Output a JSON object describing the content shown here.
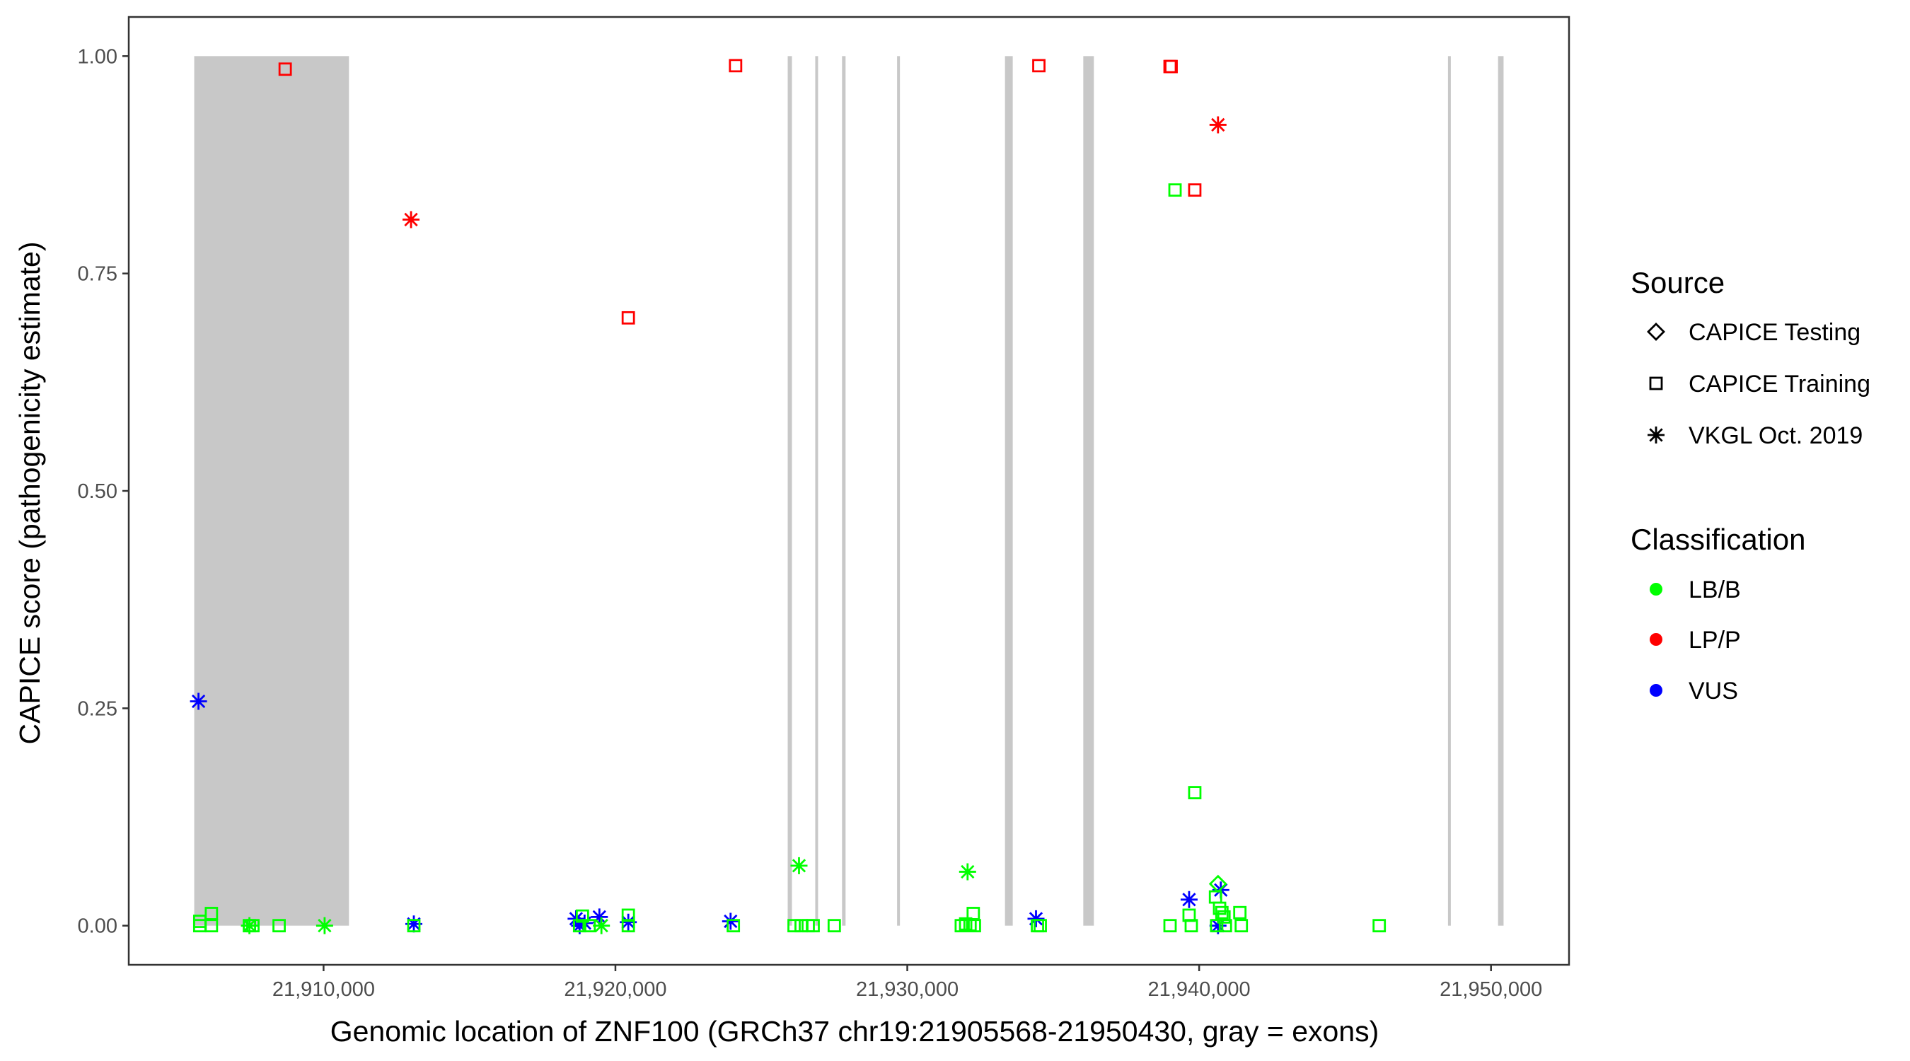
{
  "chart_data": {
    "type": "scatter",
    "xlabel": "Genomic location of ZNF100 (GRCh37 chr19:21905568-21950430, gray = exons)",
    "ylabel": "CAPICE score (pathogenicity estimate)",
    "xlim": [
      21903325,
      21952673
    ],
    "ylim": [
      -0.045,
      1.045
    ],
    "x_ticks": [
      21910000,
      21920000,
      21930000,
      21940000,
      21950000
    ],
    "x_tick_labels": [
      "21,910,000",
      "21,920,000",
      "21,930,000",
      "21,940,000",
      "21,950,000"
    ],
    "y_ticks": [
      0,
      0.25,
      0.5,
      0.75,
      1.0
    ],
    "y_tick_labels": [
      "0.00",
      "0.25",
      "0.50",
      "0.75",
      "1.00"
    ],
    "grid": false,
    "exons": [
      [
        21905568,
        21910870
      ],
      [
        21925903,
        21926048
      ],
      [
        21926846,
        21926943
      ],
      [
        21927764,
        21927885
      ],
      [
        21929650,
        21929698
      ],
      [
        21933347,
        21933613
      ],
      [
        21936030,
        21936393
      ],
      [
        21948526,
        21948622
      ],
      [
        21950242,
        21950430
      ]
    ],
    "exon_color": "#c8c8c8",
    "legend": {
      "placement": "right",
      "source_title": "Source",
      "sources": [
        {
          "key": "testing",
          "label": "CAPICE Testing",
          "shape": "diamond"
        },
        {
          "key": "training",
          "label": "CAPICE Training",
          "shape": "square"
        },
        {
          "key": "vkgl",
          "label": "VKGL Oct. 2019",
          "shape": "asterisk"
        }
      ],
      "class_title": "Classification",
      "classes": [
        {
          "key": "LB/B",
          "label": "LB/B",
          "color": "#00ff00"
        },
        {
          "key": "LP/P",
          "label": "LP/P",
          "color": "#ff0000"
        },
        {
          "key": "VUS",
          "label": "VUS",
          "color": "#0000ff"
        }
      ]
    },
    "points": [
      {
        "x": 21908685,
        "y": 0.985,
        "source": "training",
        "class": "LP/P"
      },
      {
        "x": 21912997,
        "y": 0.812,
        "source": "vkgl",
        "class": "LP/P"
      },
      {
        "x": 21920441,
        "y": 0.699,
        "source": "training",
        "class": "LP/P"
      },
      {
        "x": 21924117,
        "y": 0.989,
        "source": "training",
        "class": "LP/P"
      },
      {
        "x": 21934508,
        "y": 0.989,
        "source": "training",
        "class": "LP/P"
      },
      {
        "x": 21939003,
        "y": 0.988,
        "source": "training",
        "class": "LP/P"
      },
      {
        "x": 21939040,
        "y": 0.988,
        "source": "training",
        "class": "LP/P"
      },
      {
        "x": 21939850,
        "y": 0.846,
        "source": "training",
        "class": "LP/P"
      },
      {
        "x": 21940646,
        "y": 0.921,
        "source": "vkgl",
        "class": "LP/P"
      },
      {
        "x": 21905715,
        "y": 0.258,
        "source": "vkgl",
        "class": "VUS"
      },
      {
        "x": 21913093,
        "y": 0.002,
        "source": "vkgl",
        "class": "VUS"
      },
      {
        "x": 21918652,
        "y": 0.008,
        "source": "vkgl",
        "class": "VUS"
      },
      {
        "x": 21918773,
        "y": 0.0,
        "source": "vkgl",
        "class": "VUS"
      },
      {
        "x": 21918943,
        "y": 0.003,
        "source": "vkgl",
        "class": "VUS"
      },
      {
        "x": 21919450,
        "y": 0.01,
        "source": "vkgl",
        "class": "VUS"
      },
      {
        "x": 21920441,
        "y": 0.004,
        "source": "vkgl",
        "class": "VUS"
      },
      {
        "x": 21923946,
        "y": 0.005,
        "source": "vkgl",
        "class": "VUS"
      },
      {
        "x": 21934410,
        "y": 0.008,
        "source": "vkgl",
        "class": "VUS"
      },
      {
        "x": 21939656,
        "y": 0.03,
        "source": "vkgl",
        "class": "VUS"
      },
      {
        "x": 21940742,
        "y": 0.041,
        "source": "vkgl",
        "class": "VUS"
      },
      {
        "x": 21940646,
        "y": 0.0,
        "source": "vkgl",
        "class": "VUS"
      },
      {
        "x": 21939173,
        "y": 0.846,
        "source": "training",
        "class": "LB/B"
      },
      {
        "x": 21939850,
        "y": 0.153,
        "source": "training",
        "class": "LB/B"
      },
      {
        "x": 21926290,
        "y": 0.069,
        "source": "vkgl",
        "class": "LB/B"
      },
      {
        "x": 21932066,
        "y": 0.062,
        "source": "vkgl",
        "class": "LB/B"
      },
      {
        "x": 21905758,
        "y": 0.005,
        "source": "training",
        "class": "LB/B"
      },
      {
        "x": 21905758,
        "y": 0.0,
        "source": "training",
        "class": "LB/B"
      },
      {
        "x": 21906157,
        "y": 0.014,
        "source": "training",
        "class": "LB/B"
      },
      {
        "x": 21906157,
        "y": 0.0,
        "source": "training",
        "class": "LB/B"
      },
      {
        "x": 21907460,
        "y": 0.0,
        "source": "training",
        "class": "LB/B"
      },
      {
        "x": 21907580,
        "y": 0.0,
        "source": "training",
        "class": "LB/B"
      },
      {
        "x": 21907460,
        "y": 0.0,
        "source": "vkgl",
        "class": "LB/B"
      },
      {
        "x": 21908477,
        "y": 0.0,
        "source": "training",
        "class": "LB/B"
      },
      {
        "x": 21910036,
        "y": 0.0,
        "source": "vkgl",
        "class": "LB/B"
      },
      {
        "x": 21913093,
        "y": 0.0,
        "source": "training",
        "class": "LB/B"
      },
      {
        "x": 21918870,
        "y": 0.011,
        "source": "training",
        "class": "LB/B"
      },
      {
        "x": 21918773,
        "y": 0.0,
        "source": "training",
        "class": "LB/B"
      },
      {
        "x": 21919100,
        "y": 0.0,
        "source": "training",
        "class": "LB/B"
      },
      {
        "x": 21919520,
        "y": 0.0,
        "source": "vkgl",
        "class": "LB/B"
      },
      {
        "x": 21920441,
        "y": 0.012,
        "source": "training",
        "class": "LB/B"
      },
      {
        "x": 21920441,
        "y": 0.0,
        "source": "training",
        "class": "LB/B"
      },
      {
        "x": 21924040,
        "y": 0.0,
        "source": "training",
        "class": "LB/B"
      },
      {
        "x": 21926121,
        "y": 0.0,
        "source": "training",
        "class": "LB/B"
      },
      {
        "x": 21926363,
        "y": 0.0,
        "source": "training",
        "class": "LB/B"
      },
      {
        "x": 21926605,
        "y": 0.0,
        "source": "training",
        "class": "LB/B"
      },
      {
        "x": 21926775,
        "y": 0.0,
        "source": "training",
        "class": "LB/B"
      },
      {
        "x": 21927498,
        "y": 0.0,
        "source": "training",
        "class": "LB/B"
      },
      {
        "x": 21931850,
        "y": 0.0,
        "source": "training",
        "class": "LB/B"
      },
      {
        "x": 21932000,
        "y": 0.002,
        "source": "training",
        "class": "LB/B"
      },
      {
        "x": 21932150,
        "y": 0.001,
        "source": "training",
        "class": "LB/B"
      },
      {
        "x": 21932260,
        "y": 0.014,
        "source": "training",
        "class": "LB/B"
      },
      {
        "x": 21932300,
        "y": 0.0,
        "source": "training",
        "class": "LB/B"
      },
      {
        "x": 21934460,
        "y": 0.0,
        "source": "training",
        "class": "LB/B"
      },
      {
        "x": 21934556,
        "y": 0.0,
        "source": "training",
        "class": "LB/B"
      },
      {
        "x": 21939003,
        "y": 0.0,
        "source": "training",
        "class": "LB/B"
      },
      {
        "x": 21939656,
        "y": 0.012,
        "source": "training",
        "class": "LB/B"
      },
      {
        "x": 21939730,
        "y": 0.0,
        "source": "training",
        "class": "LB/B"
      },
      {
        "x": 21940646,
        "y": 0.048,
        "source": "testing",
        "class": "LB/B"
      },
      {
        "x": 21940560,
        "y": 0.033,
        "source": "training",
        "class": "LB/B"
      },
      {
        "x": 21940700,
        "y": 0.02,
        "source": "training",
        "class": "LB/B"
      },
      {
        "x": 21940780,
        "y": 0.015,
        "source": "training",
        "class": "LB/B"
      },
      {
        "x": 21940850,
        "y": 0.01,
        "source": "training",
        "class": "LB/B"
      },
      {
        "x": 21940600,
        "y": 0.0,
        "source": "training",
        "class": "LB/B"
      },
      {
        "x": 21940900,
        "y": 0.0,
        "source": "training",
        "class": "LB/B"
      },
      {
        "x": 21941395,
        "y": 0.015,
        "source": "training",
        "class": "LB/B"
      },
      {
        "x": 21941444,
        "y": 0.0,
        "source": "training",
        "class": "LB/B"
      },
      {
        "x": 21946170,
        "y": 0.0,
        "source": "training",
        "class": "LB/B"
      }
    ]
  }
}
